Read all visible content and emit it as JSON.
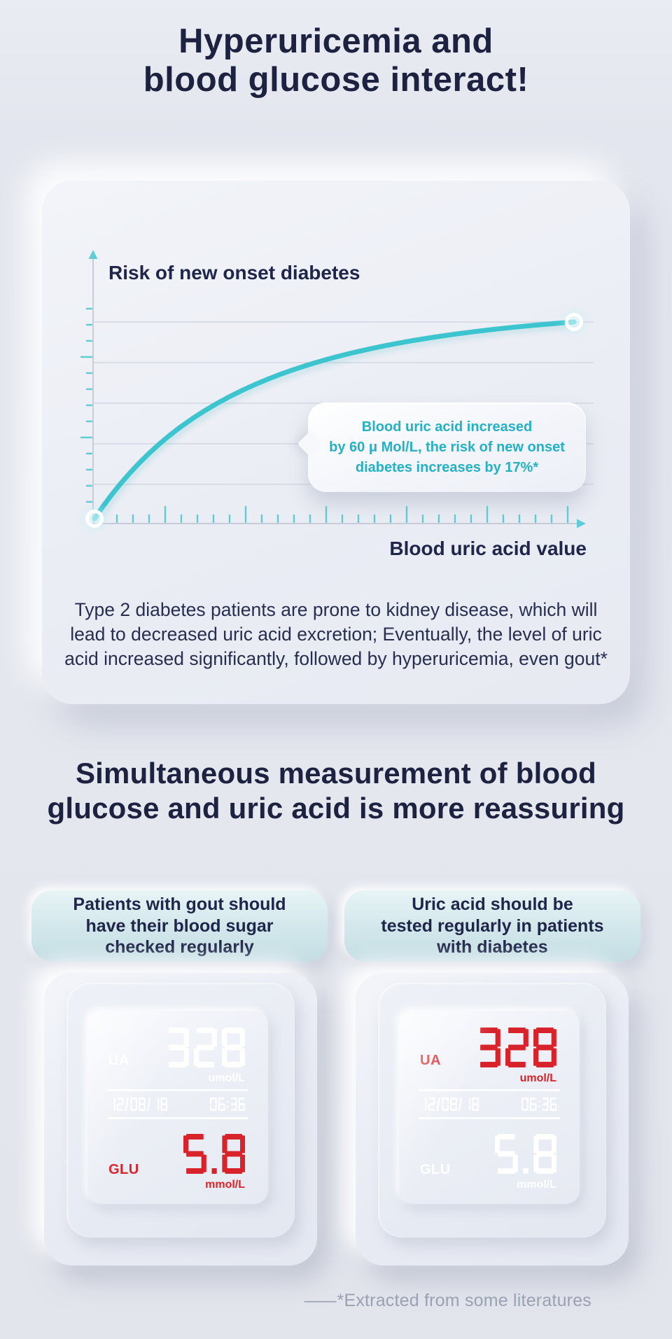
{
  "page": {
    "background": "#e4e7ee",
    "title": "Hyperuricemia and\nblood glucose interact!",
    "section_title": "Simultaneous measurement of blood\nglucose and uric acid is more reassuring",
    "footnote_dash": "——",
    "footnote_text": "*Extracted from some literatures",
    "accent_teal": "#2db5c5",
    "navy": "#1c2240",
    "alert_red": "#d8232b"
  },
  "chart_card": {
    "paragraph": "Type 2 diabetes patients are prone to kidney disease, which will\nlead to decreased uric acid excretion; Eventually, the level of uric\nacid increased significantly, followed by hyperuricemia, even gout*"
  },
  "chart_data": {
    "type": "line",
    "title": "",
    "ylabel": "Risk of new onset diabetes",
    "xlabel": "Blood uric acid value",
    "annotation": "Blood uric acid increased\nby 60 μ Mol/L, the risk of new onset\ndiabetes increases by 17%*",
    "x_tick_labels": [],
    "y_tick_labels": [],
    "axes_numeric_labels_shown": false,
    "grid": "horizontal-only",
    "line_color": "#3cc4cf",
    "series": [
      {
        "name": "Risk of new onset diabetes vs blood uric acid value",
        "points_pct": [
          [
            0,
            0
          ],
          [
            12,
            38
          ],
          [
            25,
            60
          ],
          [
            40,
            75
          ],
          [
            60,
            87
          ],
          [
            80,
            95
          ],
          [
            100,
            100
          ]
        ],
        "trend": "concave increasing: risk rises steeply at low uric acid values then plateaus",
        "markers": "white glowing ring at start (origin) and end (top right) of curve"
      }
    ]
  },
  "pills": [
    {
      "label": "Patients with gout should\nhave their blood sugar\nchecked regularly"
    },
    {
      "label": "Uric acid should be\ntested regularly in patients\nwith diabetes"
    }
  ],
  "meters": [
    {
      "ua_label": "UA",
      "ua_value": "328",
      "ua_unit": "umol/L",
      "ua_color": "#ffffff",
      "date": "12/08/18",
      "time": "06:36",
      "datetime_color": "#ffffff",
      "glu_label": "GLU",
      "glu_value": "5.8",
      "glu_unit": "mmol/L",
      "glu_color": "#d8232b"
    },
    {
      "ua_label": "UA",
      "ua_value": "328",
      "ua_unit": "umol/L",
      "ua_color": "#d8232b",
      "date": "12/08/18",
      "time": "06:36",
      "datetime_color": "#ffffff",
      "glu_label": "GLU",
      "glu_value": "5.8",
      "glu_unit": "mmol/L",
      "glu_color": "#ffffff"
    }
  ]
}
